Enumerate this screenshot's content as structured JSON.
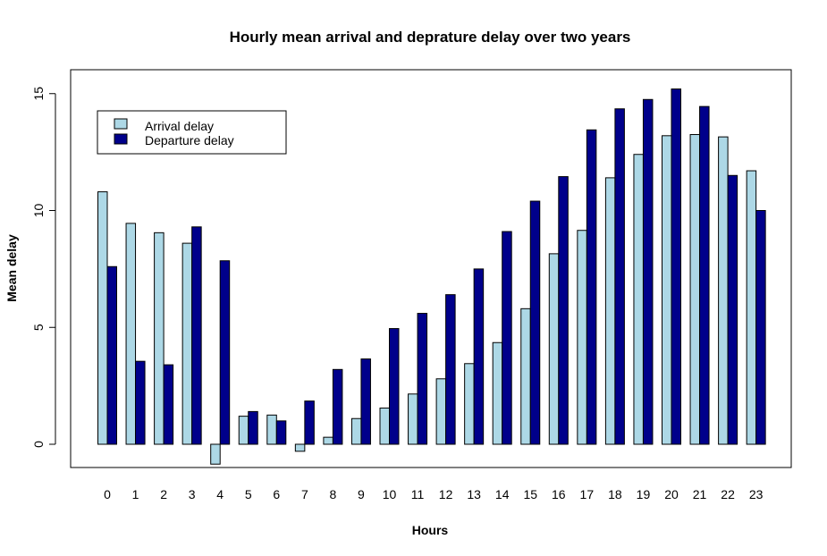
{
  "chart_data": {
    "type": "bar",
    "title": "Hourly mean arrival and deprature delay over two years",
    "xlabel": "Hours",
    "ylabel": "Mean delay",
    "categories": [
      "0",
      "1",
      "2",
      "3",
      "4",
      "5",
      "6",
      "7",
      "8",
      "9",
      "10",
      "11",
      "12",
      "13",
      "14",
      "15",
      "16",
      "17",
      "18",
      "19",
      "20",
      "21",
      "22",
      "23"
    ],
    "series": [
      {
        "name": "Arrival delay",
        "color": "#add8e6",
        "values": [
          10.8,
          9.45,
          9.05,
          8.6,
          -0.85,
          1.2,
          1.25,
          -0.3,
          0.3,
          1.1,
          1.55,
          2.15,
          2.8,
          3.45,
          4.35,
          5.8,
          8.15,
          9.15,
          11.4,
          12.4,
          13.2,
          13.25,
          13.15,
          11.7
        ]
      },
      {
        "name": "Departure delay",
        "color": "#00008b",
        "values": [
          7.6,
          3.55,
          3.4,
          9.3,
          7.85,
          1.4,
          1.0,
          1.85,
          3.2,
          3.65,
          4.95,
          5.6,
          6.4,
          7.5,
          9.1,
          10.4,
          11.45,
          13.45,
          14.35,
          14.75,
          15.2,
          14.45,
          11.5,
          10.0
        ]
      }
    ],
    "ylim": [
      -1,
      16
    ],
    "yticks": [
      "0",
      "5",
      "10",
      "15"
    ],
    "grid": false,
    "legend_position": "top-left"
  }
}
